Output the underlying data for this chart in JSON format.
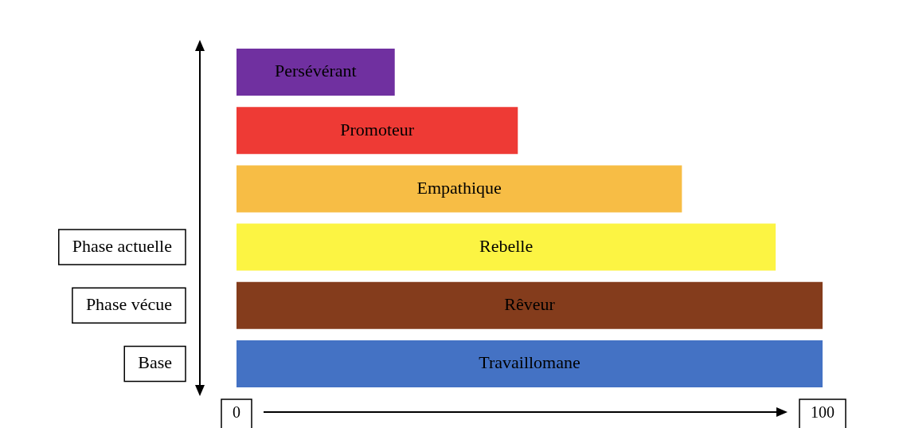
{
  "chart_data": {
    "type": "bar",
    "orientation": "horizontal",
    "categories": [
      "Persévérant",
      "Promoteur",
      "Empathique",
      "Rebelle",
      "Rêveur",
      "Travaillomane"
    ],
    "values": [
      27,
      48,
      76,
      92,
      100,
      100
    ],
    "colors": [
      "#7030a0",
      "#ee3a35",
      "#f7bd45",
      "#fcf443",
      "#843c1c",
      "#4472c4"
    ],
    "xlim": [
      0,
      100
    ],
    "xticks": [
      0,
      100
    ],
    "annotations": [
      "Phase actuelle",
      "Phase vécue",
      "Base"
    ]
  }
}
